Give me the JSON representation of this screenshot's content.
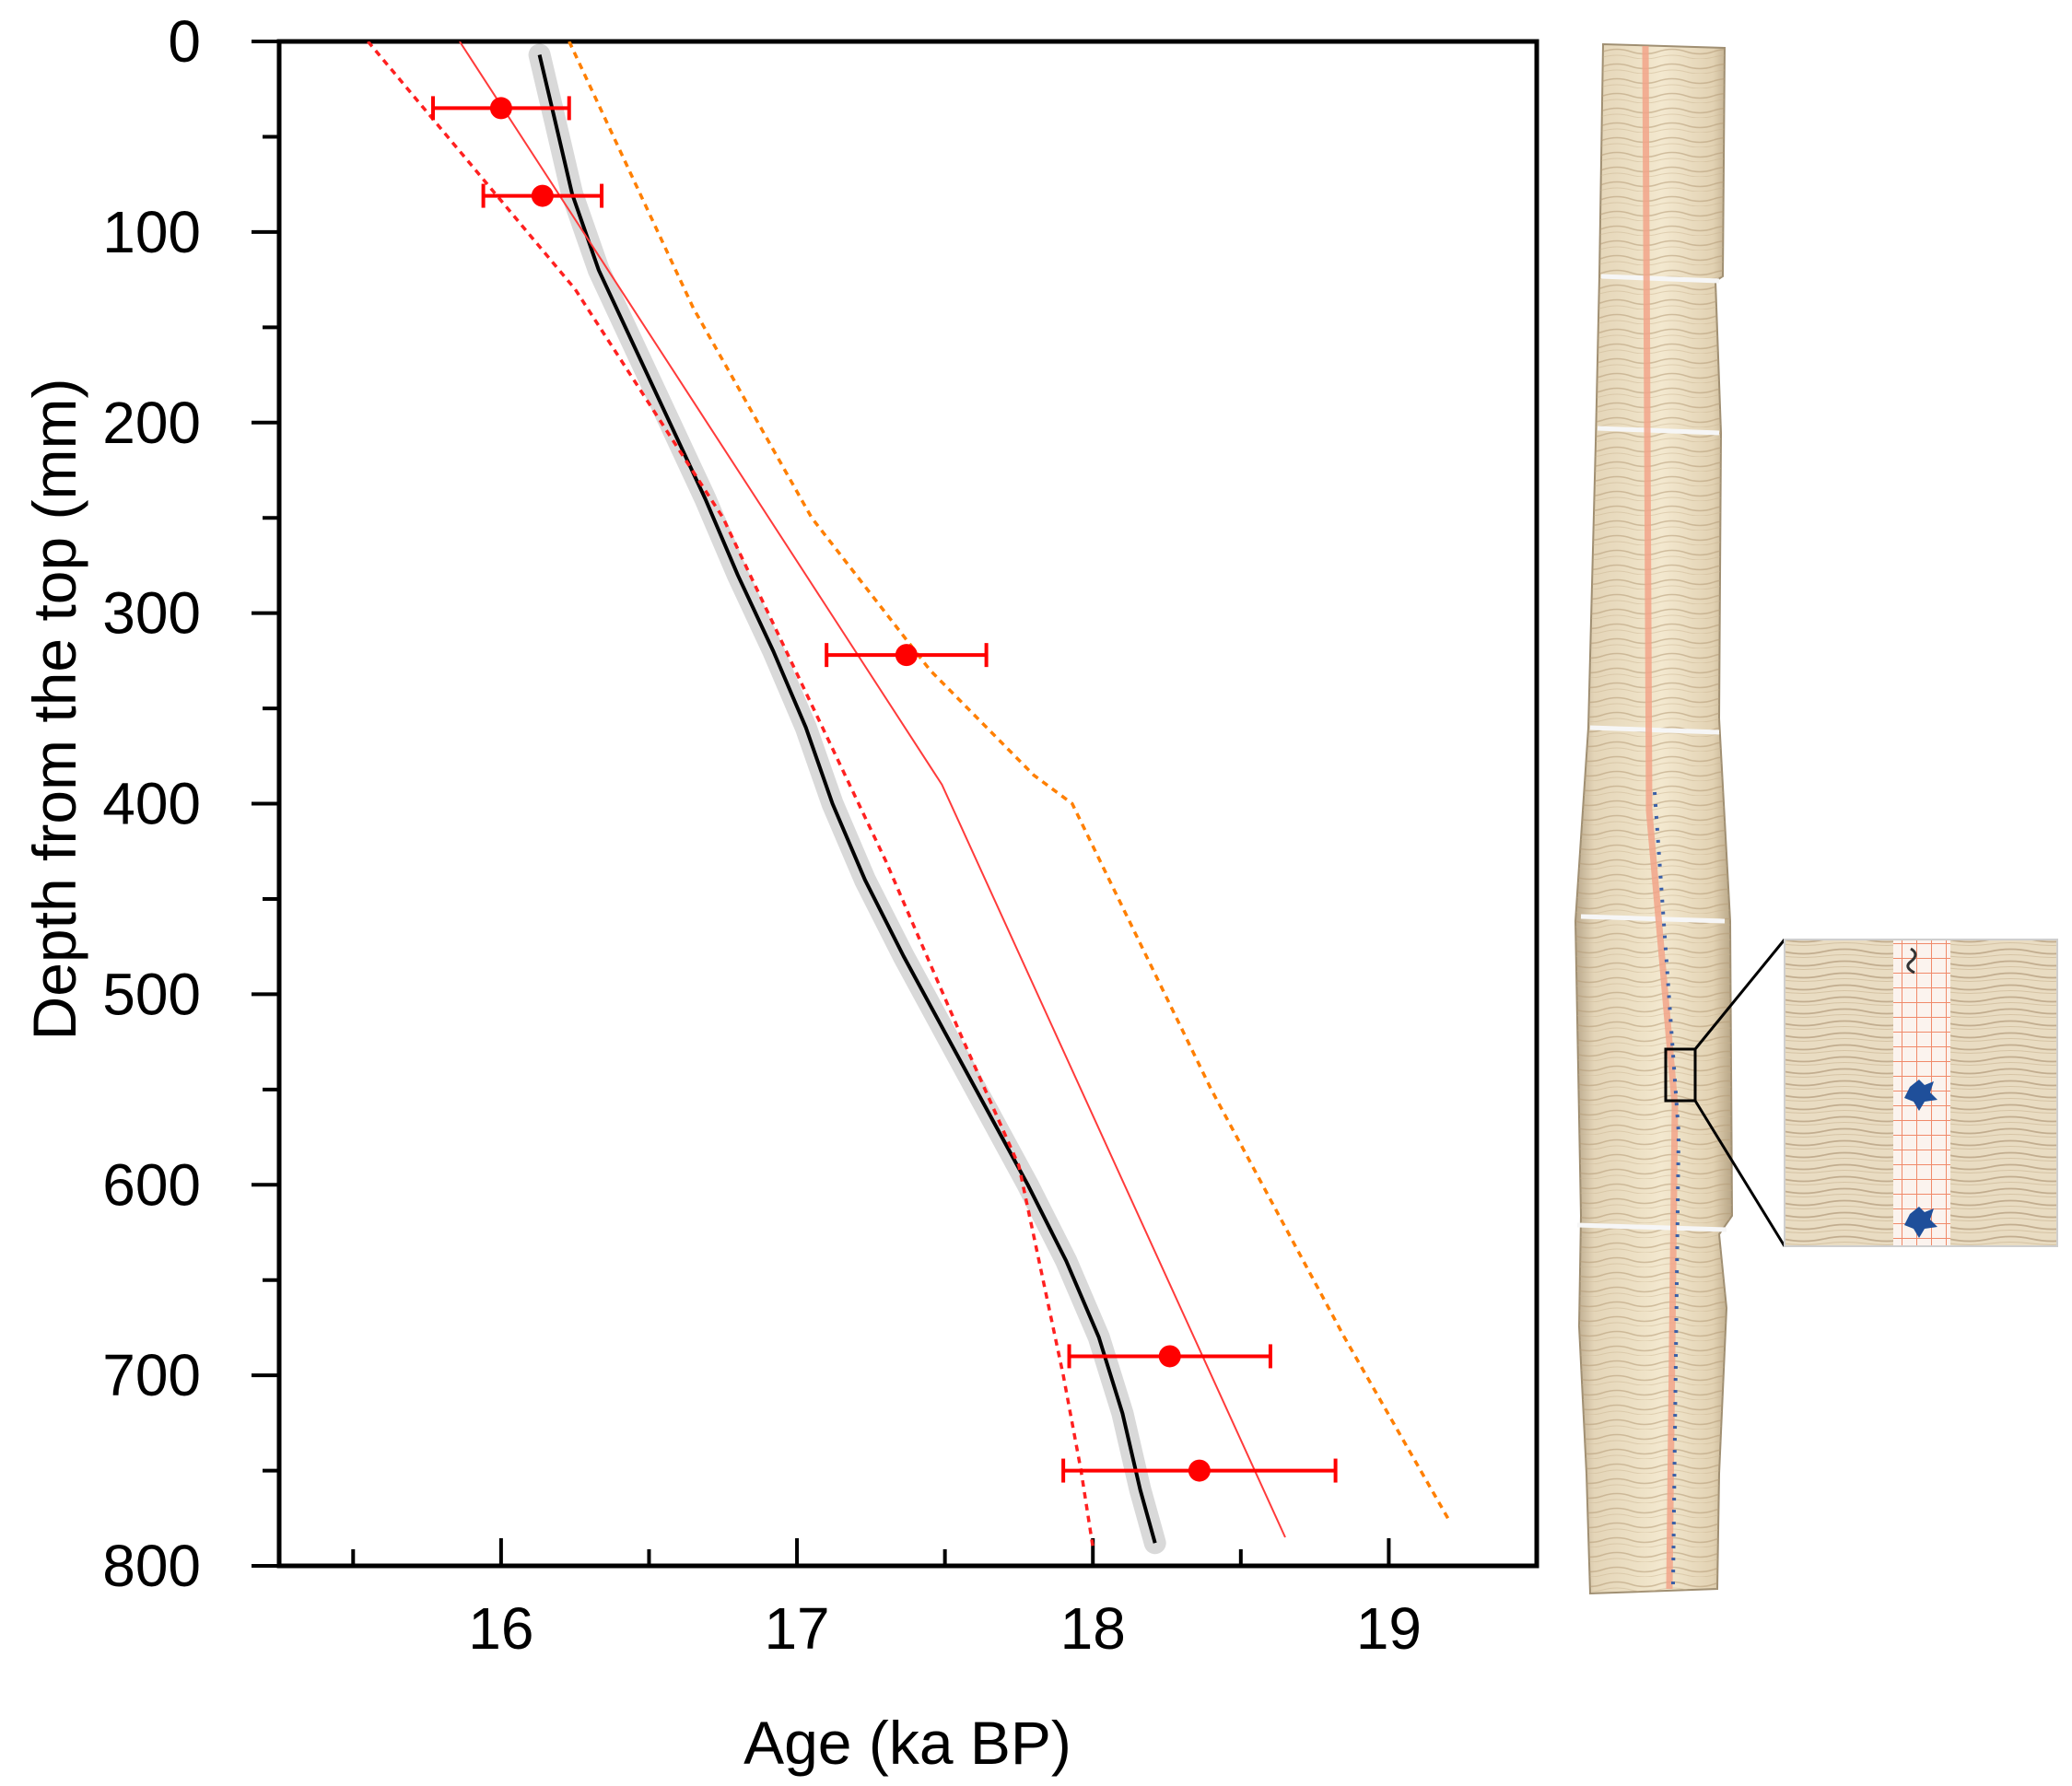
{
  "chart_data": {
    "type": "line",
    "title": "",
    "xlabel": "Age (ka BP)",
    "ylabel": "Depth from the top (mm)",
    "xlim": [
      15.25,
      19.5
    ],
    "ylim": [
      0,
      800
    ],
    "y_inverted": true,
    "x_ticks": [
      16,
      17,
      18,
      19
    ],
    "x_tick_labels": [
      "16",
      "17",
      "18",
      "19"
    ],
    "x_minor_ticks": [
      15.5,
      16.5,
      17.5,
      18.5
    ],
    "y_ticks": [
      0,
      100,
      200,
      300,
      400,
      500,
      600,
      700,
      800
    ],
    "y_tick_labels": [
      "0",
      "100",
      "200",
      "300",
      "400",
      "500",
      "600",
      "700",
      "800"
    ],
    "y_minor_ticks": [
      50,
      150,
      250,
      350,
      450,
      550,
      650,
      750
    ],
    "grid": false,
    "colors": {
      "model": "#000000",
      "model_band": "#d9d9d9",
      "linear_fit": "#ff3b3b",
      "lower_bound": "#ff2020",
      "upper_bound": "#ff7f00",
      "dates": "#ff0000"
    },
    "series": [
      {
        "style": "solid",
        "color_key": "model",
        "x": [
          16.13,
          16.18,
          16.24,
          16.33,
          16.45,
          16.57,
          16.69,
          16.8,
          16.92,
          17.03,
          17.12,
          17.23,
          17.36,
          17.5,
          17.64,
          17.78,
          17.91,
          18.02,
          18.1,
          18.16,
          18.21
        ],
        "y": [
          7,
          40,
          80,
          120,
          160,
          200,
          240,
          280,
          320,
          360,
          400,
          440,
          480,
          520,
          560,
          600,
          640,
          680,
          720,
          760,
          788
        ]
      },
      {
        "style": "thin",
        "color_key": "linear_fit",
        "x": [
          15.86,
          17.49,
          18.65
        ],
        "y": [
          0,
          390,
          785
        ]
      },
      {
        "style": "dotted",
        "color_key": "lower_bound",
        "x": [
          15.55,
          16.25,
          16.75,
          17.3,
          17.55,
          17.75,
          17.9,
          17.96,
          18.0
        ],
        "y": [
          0,
          130,
          250,
          430,
          520,
          590,
          700,
          750,
          790
        ]
      },
      {
        "style": "dotted",
        "color_key": "upper_bound",
        "x": [
          16.23,
          16.65,
          17.05,
          17.45,
          17.8,
          17.93,
          18.4,
          18.85,
          19.2
        ],
        "y": [
          0,
          140,
          250,
          330,
          385,
          400,
          550,
          680,
          775
        ]
      }
    ],
    "points": [
      {
        "x": 16.0,
        "y": 35,
        "xerr": [
          0.23,
          0.23
        ]
      },
      {
        "x": 16.14,
        "y": 81,
        "xerr": [
          0.2,
          0.2
        ]
      },
      {
        "x": 17.37,
        "y": 322,
        "xerr": [
          0.27,
          0.27
        ]
      },
      {
        "x": 18.26,
        "y": 690,
        "xerr": [
          0.34,
          0.34
        ]
      },
      {
        "x": 18.36,
        "y": 750,
        "xerr": [
          0.46,
          0.46
        ]
      }
    ]
  },
  "images": {
    "core_photo": "stalagmite-core-photo",
    "inset_photo": "core-closeup-inset"
  }
}
